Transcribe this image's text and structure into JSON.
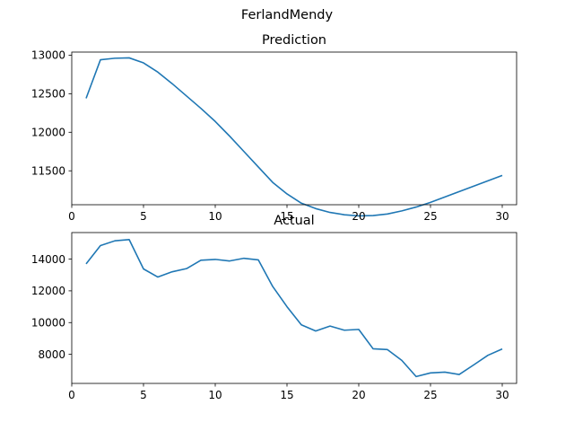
{
  "figure": {
    "suptitle": "FerlandMendy"
  },
  "chart_data": [
    {
      "type": "line",
      "title": "Prediction",
      "xlabel": "",
      "ylabel": "",
      "color": "#1f77b4",
      "x": [
        1,
        2,
        3,
        4,
        5,
        6,
        7,
        8,
        9,
        10,
        11,
        12,
        13,
        14,
        15,
        16,
        17,
        18,
        19,
        20,
        21,
        22,
        23,
        24,
        25,
        26,
        27,
        28,
        29,
        30
      ],
      "series": [
        {
          "values": [
            12440,
            12940,
            12960,
            12965,
            12900,
            12780,
            12630,
            12470,
            12310,
            12140,
            11950,
            11750,
            11550,
            11350,
            11200,
            11080,
            11010,
            10960,
            10930,
            10915,
            10920,
            10940,
            10980,
            11030,
            11090,
            11160,
            11230,
            11300,
            11370,
            11440
          ]
        }
      ],
      "xlim": [
        0,
        31
      ],
      "ylim": [
        11060,
        13040
      ],
      "xticks": [
        0,
        5,
        10,
        15,
        20,
        25,
        30
      ],
      "yticks": [
        11500,
        12000,
        12500,
        13000
      ],
      "grid": false
    },
    {
      "type": "line",
      "title": "Actual",
      "xlabel": "",
      "ylabel": "",
      "color": "#1f77b4",
      "x": [
        1,
        2,
        3,
        4,
        5,
        6,
        7,
        8,
        9,
        10,
        11,
        12,
        13,
        14,
        15,
        16,
        17,
        18,
        19,
        20,
        21,
        22,
        23,
        24,
        25,
        26,
        27,
        28,
        29,
        30
      ],
      "series": [
        {
          "values": [
            13700,
            14850,
            15150,
            15230,
            13380,
            12870,
            13200,
            13400,
            13930,
            13980,
            13880,
            14050,
            13950,
            12280,
            11000,
            9860,
            9470,
            9780,
            9520,
            9570,
            8350,
            8300,
            7620,
            6600,
            6830,
            6880,
            6730,
            7330,
            7940,
            8340
          ]
        }
      ],
      "xlim": [
        0,
        31
      ],
      "ylim": [
        6170,
        15670
      ],
      "xticks": [
        0,
        5,
        10,
        15,
        20,
        25,
        30
      ],
      "yticks": [
        8000,
        10000,
        12000,
        14000
      ],
      "grid": false
    }
  ]
}
